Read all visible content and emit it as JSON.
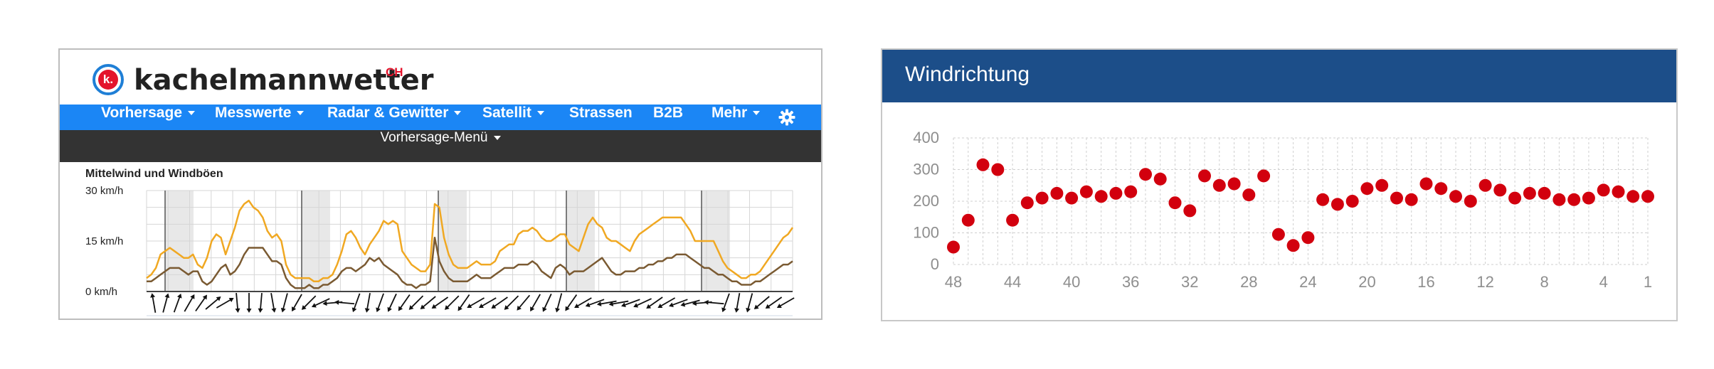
{
  "left_widget": {
    "brand": {
      "name": "kachelmannwetter",
      "suffix": "CH",
      "logo_letter": "k."
    },
    "nav": [
      {
        "label": "Vorhersage",
        "dropdown": true
      },
      {
        "label": "Messwerte",
        "dropdown": true
      },
      {
        "label": "Radar & Gewitter",
        "dropdown": true
      },
      {
        "label": "Satellit",
        "dropdown": true
      },
      {
        "label": "Strassen",
        "dropdown": false
      },
      {
        "label": "B2B",
        "dropdown": false
      },
      {
        "label": "Mehr",
        "dropdown": true
      }
    ],
    "settings_icon": "gear-icon",
    "submenu": {
      "label": "Vorhersage-Menü"
    },
    "colors": {
      "nav": "#1b86f5",
      "submenu": "#333333",
      "gust": "#f0a822",
      "wind": "#7a5a32"
    }
  },
  "chart_data": [
    {
      "type": "line",
      "title": "Mittelwind und Windböen",
      "ylim": [
        0,
        30
      ],
      "yticks": [
        "0 km/h",
        "15 km/h",
        "30 km/h"
      ],
      "grid": true,
      "series": [
        {
          "name": "",
          "values": [
            4,
            5,
            7,
            11,
            12,
            13,
            12,
            11,
            10,
            10,
            11,
            8,
            7,
            10,
            15,
            17,
            16,
            11,
            15,
            19,
            24,
            26,
            27,
            25,
            24,
            22,
            18,
            16,
            17,
            15,
            8,
            5,
            4,
            4,
            4,
            4,
            3,
            3,
            4,
            4,
            5,
            8,
            12,
            17,
            18,
            16,
            13,
            11,
            14,
            16,
            18,
            21,
            20,
            21,
            20,
            12,
            10,
            8,
            7,
            6,
            6,
            8,
            26,
            25,
            16,
            11,
            8,
            7,
            7,
            7,
            8,
            9,
            8,
            8,
            8,
            9,
            12,
            13,
            14,
            14,
            17,
            18,
            18,
            19,
            18,
            16,
            15,
            15,
            16,
            17,
            17,
            14,
            13,
            12,
            16,
            20,
            22,
            20,
            19,
            16,
            15,
            15,
            14,
            13,
            12,
            15,
            17,
            18,
            19,
            20,
            21,
            22,
            22,
            22,
            22,
            22,
            20,
            18,
            15,
            15,
            15,
            15,
            15,
            12,
            9,
            7,
            6,
            5,
            4,
            4,
            5,
            5,
            6,
            8,
            10,
            12,
            14,
            16,
            17,
            19
          ]
        },
        {
          "name": "",
          "values": [
            3,
            3,
            4,
            5,
            6,
            7,
            7,
            7,
            6,
            5,
            6,
            6,
            3,
            2,
            3,
            5,
            7,
            8,
            5,
            6,
            8,
            11,
            13,
            13,
            13,
            13,
            11,
            9,
            9,
            8,
            4,
            2,
            1,
            1,
            1,
            2,
            1,
            1,
            2,
            2,
            3,
            4,
            6,
            7,
            7,
            6,
            7,
            8,
            10,
            9,
            10,
            8,
            7,
            6,
            5,
            3,
            2,
            2,
            1,
            2,
            2,
            3,
            16,
            9,
            6,
            4,
            3,
            3,
            3,
            3,
            4,
            5,
            4,
            4,
            4,
            5,
            6,
            7,
            7,
            7,
            8,
            8,
            8,
            9,
            8,
            6,
            5,
            4,
            7,
            8,
            7,
            5,
            6,
            6,
            6,
            7,
            8,
            9,
            10,
            8,
            6,
            5,
            5,
            6,
            6,
            6,
            7,
            7,
            8,
            8,
            9,
            9,
            10,
            10,
            11,
            11,
            11,
            10,
            9,
            8,
            7,
            7,
            6,
            5,
            5,
            4,
            3,
            3,
            2,
            2,
            2,
            3,
            3,
            4,
            5,
            6,
            7,
            8,
            8,
            9
          ]
        }
      ],
      "wind_direction_angles": [
        350,
        15,
        20,
        30,
        35,
        50,
        60,
        175,
        180,
        185,
        170,
        195,
        210,
        225,
        245,
        265,
        275,
        200,
        190,
        200,
        205,
        215,
        225,
        230,
        235,
        225,
        215,
        240,
        240,
        235,
        225,
        220,
        210,
        205,
        195,
        215,
        240,
        250,
        260,
        260,
        250,
        245,
        235,
        240,
        250,
        255,
        265,
        275,
        200,
        190,
        195,
        230,
        235,
        240
      ]
    },
    {
      "type": "scatter",
      "title": "Windrichtung",
      "ylim": [
        0,
        400
      ],
      "yticks": [
        "0",
        "100",
        "200",
        "300",
        "400"
      ],
      "xticks": [
        "48",
        "44",
        "40",
        "36",
        "32",
        "28",
        "24",
        "20",
        "16",
        "12",
        "8",
        "4",
        "1"
      ],
      "x_reversed": true,
      "x": [
        48,
        47,
        46,
        45,
        44,
        43,
        42,
        41,
        40,
        39,
        38,
        37,
        36,
        35,
        34,
        33,
        32,
        31,
        30,
        29,
        28,
        27,
        26,
        25,
        24,
        23,
        22,
        21,
        20,
        19,
        18,
        17,
        16,
        15,
        14,
        13,
        12,
        11,
        10,
        9,
        8,
        7,
        6,
        5,
        4,
        3,
        2,
        1
      ],
      "values": [
        55,
        140,
        315,
        300,
        140,
        195,
        210,
        225,
        210,
        230,
        215,
        225,
        230,
        285,
        270,
        195,
        170,
        280,
        250,
        255,
        220,
        280,
        95,
        60,
        85,
        205,
        190,
        200,
        240,
        250,
        210,
        205,
        255,
        240,
        215,
        200,
        250,
        235,
        210,
        225,
        225,
        205,
        205,
        210,
        235,
        230,
        215,
        215
      ],
      "color": "#d2000e",
      "grid": true
    }
  ]
}
